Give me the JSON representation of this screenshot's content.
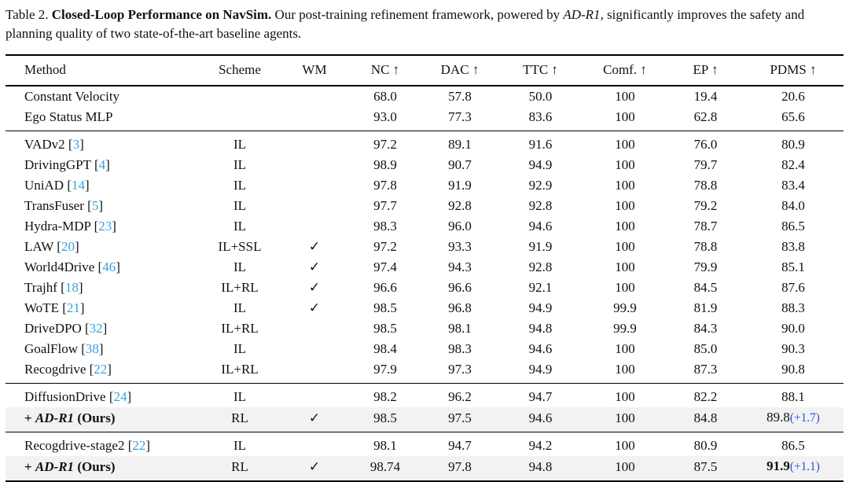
{
  "caption": {
    "label": "Table 2.",
    "title": "Closed-Loop Performance on NavSim.",
    "text_before_emph": "Our post-training refinement framework, powered by",
    "emph": "AD-R1",
    "text_after_emph": ", significantly improves the safety and planning quality of two state-of-the-art baseline agents."
  },
  "colors": {
    "citation_blue": "#3aa0e0",
    "delta_blue": "#2b50e0",
    "row_highlight": "#f2f2f2",
    "rule_black": "#000000"
  },
  "table": {
    "headers": [
      "Method",
      "Scheme",
      "WM",
      "NC ↑",
      "DAC ↑",
      "TTC ↑",
      "Comf. ↑",
      "EP ↑",
      "PDMS ↑"
    ],
    "cite_format": {
      "open": "[",
      "close": "]"
    },
    "groups": [
      {
        "rows": [
          {
            "method": {
              "name": "Constant Velocity",
              "cite": ""
            },
            "scheme": "",
            "wm": "",
            "nc": "68.0",
            "dac": "57.8",
            "ttc": "50.0",
            "comf": "100",
            "ep": "19.4",
            "pdms": "20.6",
            "pdms_delta": "",
            "pdms_bold": false,
            "highlight": false,
            "ours": false
          },
          {
            "method": {
              "name": "Ego Status MLP",
              "cite": ""
            },
            "scheme": "",
            "wm": "",
            "nc": "93.0",
            "dac": "77.3",
            "ttc": "83.6",
            "comf": "100",
            "ep": "62.8",
            "pdms": "65.6",
            "pdms_delta": "",
            "pdms_bold": false,
            "highlight": false,
            "ours": false
          }
        ]
      },
      {
        "rows": [
          {
            "method": {
              "name": "VADv2",
              "cite": "3"
            },
            "scheme": "IL",
            "wm": "",
            "nc": "97.2",
            "dac": "89.1",
            "ttc": "91.6",
            "comf": "100",
            "ep": "76.0",
            "pdms": "80.9",
            "pdms_delta": "",
            "pdms_bold": false,
            "highlight": false,
            "ours": false
          },
          {
            "method": {
              "name": "DrivingGPT",
              "cite": "4"
            },
            "scheme": "IL",
            "wm": "",
            "nc": "98.9",
            "dac": "90.7",
            "ttc": "94.9",
            "comf": "100",
            "ep": "79.7",
            "pdms": "82.4",
            "pdms_delta": "",
            "pdms_bold": false,
            "highlight": false,
            "ours": false
          },
          {
            "method": {
              "name": "UniAD",
              "cite": "14"
            },
            "scheme": "IL",
            "wm": "",
            "nc": "97.8",
            "dac": "91.9",
            "ttc": "92.9",
            "comf": "100",
            "ep": "78.8",
            "pdms": "83.4",
            "pdms_delta": "",
            "pdms_bold": false,
            "highlight": false,
            "ours": false
          },
          {
            "method": {
              "name": "TransFuser",
              "cite": "5"
            },
            "scheme": "IL",
            "wm": "",
            "nc": "97.7",
            "dac": "92.8",
            "ttc": "92.8",
            "comf": "100",
            "ep": "79.2",
            "pdms": "84.0",
            "pdms_delta": "",
            "pdms_bold": false,
            "highlight": false,
            "ours": false
          },
          {
            "method": {
              "name": "Hydra-MDP",
              "cite": "23"
            },
            "scheme": "IL",
            "wm": "",
            "nc": "98.3",
            "dac": "96.0",
            "ttc": "94.6",
            "comf": "100",
            "ep": "78.7",
            "pdms": "86.5",
            "pdms_delta": "",
            "pdms_bold": false,
            "highlight": false,
            "ours": false
          },
          {
            "method": {
              "name": "LAW",
              "cite": "20"
            },
            "scheme": "IL+SSL",
            "wm": "✓",
            "nc": "97.2",
            "dac": "93.3",
            "ttc": "91.9",
            "comf": "100",
            "ep": "78.8",
            "pdms": "83.8",
            "pdms_delta": "",
            "pdms_bold": false,
            "highlight": false,
            "ours": false
          },
          {
            "method": {
              "name": "World4Drive",
              "cite": "46"
            },
            "scheme": "IL",
            "wm": "✓",
            "nc": "97.4",
            "dac": "94.3",
            "ttc": "92.8",
            "comf": "100",
            "ep": "79.9",
            "pdms": "85.1",
            "pdms_delta": "",
            "pdms_bold": false,
            "highlight": false,
            "ours": false
          },
          {
            "method": {
              "name": "Trajhf",
              "cite": "18"
            },
            "scheme": "IL+RL",
            "wm": "✓",
            "nc": "96.6",
            "dac": "96.6",
            "ttc": "92.1",
            "comf": "100",
            "ep": "84.5",
            "pdms": "87.6",
            "pdms_delta": "",
            "pdms_bold": false,
            "highlight": false,
            "ours": false
          },
          {
            "method": {
              "name": "WoTE",
              "cite": "21"
            },
            "scheme": "IL",
            "wm": "✓",
            "nc": "98.5",
            "dac": "96.8",
            "ttc": "94.9",
            "comf": "99.9",
            "ep": "81.9",
            "pdms": "88.3",
            "pdms_delta": "",
            "pdms_bold": false,
            "highlight": false,
            "ours": false
          },
          {
            "method": {
              "name": "DriveDPO",
              "cite": "32"
            },
            "scheme": "IL+RL",
            "wm": "",
            "nc": "98.5",
            "dac": "98.1",
            "ttc": "94.8",
            "comf": "99.9",
            "ep": "84.3",
            "pdms": "90.0",
            "pdms_delta": "",
            "pdms_bold": false,
            "highlight": false,
            "ours": false
          },
          {
            "method": {
              "name": "GoalFlow",
              "cite": "38"
            },
            "scheme": "IL",
            "wm": "",
            "nc": "98.4",
            "dac": "98.3",
            "ttc": "94.6",
            "comf": "100",
            "ep": "85.0",
            "pdms": "90.3",
            "pdms_delta": "",
            "pdms_bold": false,
            "highlight": false,
            "ours": false
          },
          {
            "method": {
              "name": "Recogdrive",
              "cite": "22"
            },
            "scheme": "IL+RL",
            "wm": "",
            "nc": "97.9",
            "dac": "97.3",
            "ttc": "94.9",
            "comf": "100",
            "ep": "87.3",
            "pdms": "90.8",
            "pdms_delta": "",
            "pdms_bold": false,
            "highlight": false,
            "ours": false
          }
        ]
      },
      {
        "rows": [
          {
            "method": {
              "name": "DiffusionDrive",
              "cite": "24"
            },
            "scheme": "IL",
            "wm": "",
            "nc": "98.2",
            "dac": "96.2",
            "ttc": "94.7",
            "comf": "100",
            "ep": "82.2",
            "pdms": "88.1",
            "pdms_delta": "",
            "pdms_bold": false,
            "highlight": false,
            "ours": false
          },
          {
            "method": {
              "prefix": "+ ",
              "name": "AD-R1",
              "suffix": " (Ours)",
              "cite": ""
            },
            "scheme": "RL",
            "wm": "✓",
            "nc": "98.5",
            "dac": "97.5",
            "ttc": "94.6",
            "comf": "100",
            "ep": "84.8",
            "pdms": "89.8",
            "pdms_delta": "(+1.7)",
            "pdms_bold": false,
            "highlight": true,
            "ours": true
          }
        ]
      },
      {
        "rows": [
          {
            "method": {
              "name": "Recogdrive-stage2",
              "cite": "22"
            },
            "scheme": "IL",
            "wm": "",
            "nc": "98.1",
            "dac": "94.7",
            "ttc": "94.2",
            "comf": "100",
            "ep": "80.9",
            "pdms": "86.5",
            "pdms_delta": "",
            "pdms_bold": false,
            "highlight": false,
            "ours": false
          },
          {
            "method": {
              "prefix": "+ ",
              "name": "AD-R1",
              "suffix": " (Ours)",
              "cite": ""
            },
            "scheme": "RL",
            "wm": "✓",
            "nc": "98.74",
            "dac": "97.8",
            "ttc": "94.8",
            "comf": "100",
            "ep": "87.5",
            "pdms": "91.9",
            "pdms_delta": "(+1.1)",
            "pdms_bold": true,
            "highlight": true,
            "ours": true
          }
        ]
      }
    ]
  }
}
